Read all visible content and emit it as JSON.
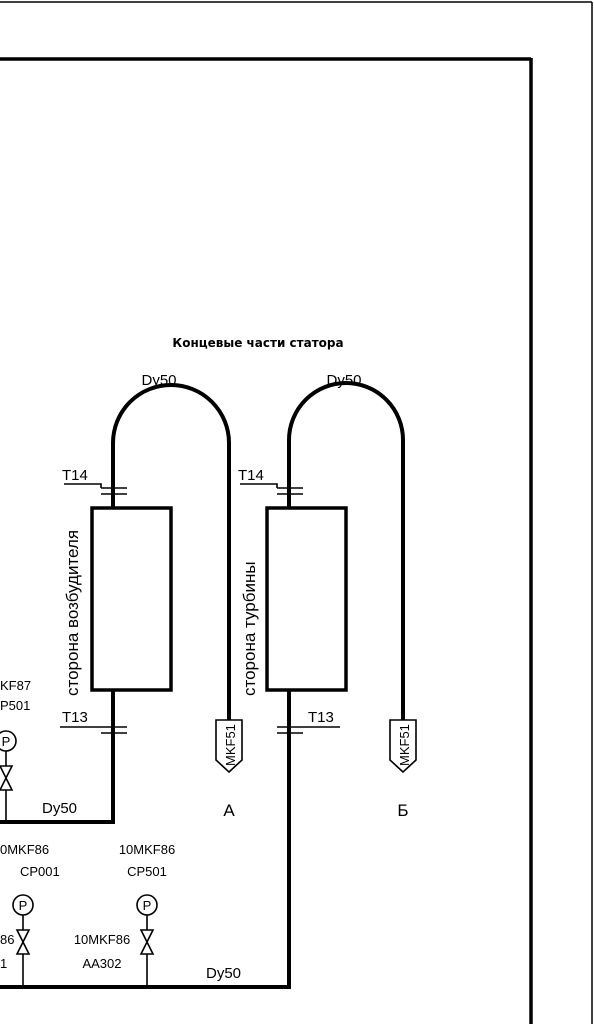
{
  "title": "Концевые части статора",
  "pipe_label": "Dy50",
  "side_exciter": "сторона возбудителя",
  "side_turbine": "сторона турбины",
  "t14": "T14",
  "t13": "T13",
  "outlet_tag": "MKF51",
  "outlet_a": "A",
  "outlet_b": "Б",
  "gauge_symbol": "P",
  "instr_left": {
    "tag": "KF87",
    "cp": "P501"
  },
  "instr_mid": {
    "tag": "0MKF86",
    "cp": "CP001"
  },
  "instr_right": {
    "tag": "10MKF86",
    "cp": "CP501"
  },
  "valve_left": {
    "tag": "86",
    "aa": "1"
  },
  "valve_right": {
    "tag": "10MKF86",
    "aa": "AA302"
  }
}
